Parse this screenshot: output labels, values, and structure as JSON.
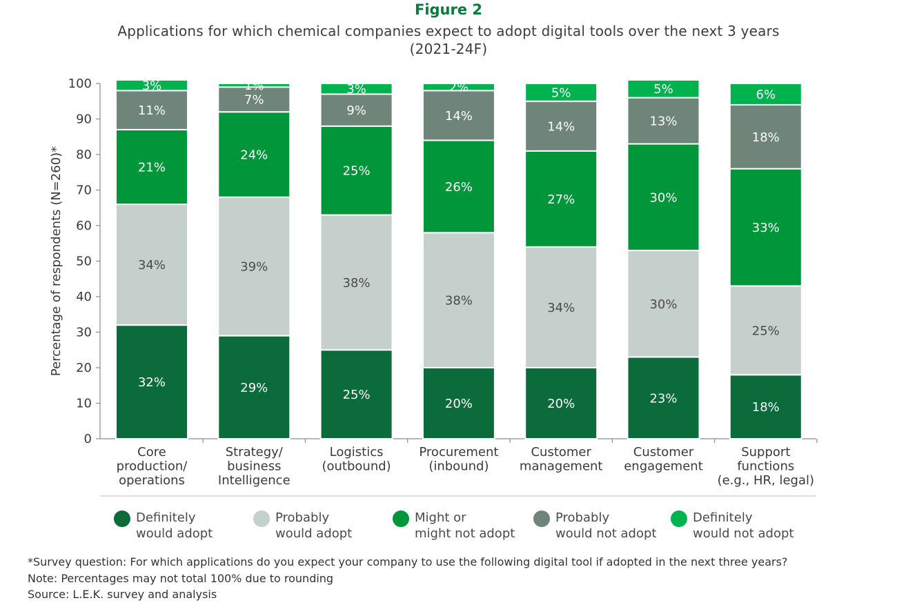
{
  "figure_label": "Figure 2",
  "subtitle_line1": "Applications for which chemical companies expect to adopt digital tools over the next 3 years",
  "subtitle_line2": "(2021-24F)",
  "colors": {
    "definitely_adopt": "#0b6b3a",
    "probably_adopt": "#c5cfcc",
    "might_or_might_not": "#009639",
    "probably_not": "#6f8579",
    "definitely_not": "#00b34f",
    "title_green": "#0a7a3c",
    "axis": "#8a8a8a",
    "tick_text": "#3a3a3a",
    "label_light": "#ffffff",
    "label_dark": "#4a4a4a"
  },
  "legend": [
    {
      "line1": "Definitely",
      "line2": "would adopt",
      "color": "#0b6b3a"
    },
    {
      "line1": "Probably",
      "line2": "would adopt",
      "color": "#c5cfcc"
    },
    {
      "line1": "Might or",
      "line2": "might not adopt",
      "color": "#009639"
    },
    {
      "line1": "Probably",
      "line2": "would not adopt",
      "color": "#6f8579"
    },
    {
      "line1": "Definitely",
      "line2": "would not adopt",
      "color": "#00b34f"
    }
  ],
  "footnotes": {
    "survey": "*Survey question: For which applications do you expect your company to use the following digital tool if adopted in the next three years?",
    "note": "Note: Percentages may not total 100% due to rounding",
    "source": "Source: L.E.K. survey and analysis"
  },
  "chart_data": {
    "type": "bar",
    "stacked": true,
    "title": "Figure 2",
    "subtitle": "Applications for which chemical companies expect to adopt digital tools over the next 3 years (2021-24F)",
    "xlabel": "",
    "ylabel": "Percentage of respondents (N=260)*",
    "ylim": [
      0,
      100
    ],
    "yticks": [
      0,
      10,
      20,
      30,
      40,
      50,
      60,
      70,
      80,
      90,
      100
    ],
    "categories": [
      [
        "Core",
        "production/",
        "operations"
      ],
      [
        "Strategy/",
        "business",
        "Intelligence"
      ],
      [
        "Logistics",
        "(outbound)"
      ],
      [
        "Procurement",
        "(inbound)"
      ],
      [
        "Customer",
        "management"
      ],
      [
        "Customer",
        "engagement"
      ],
      [
        "Support",
        "functions",
        "(e.g., HR, legal)"
      ]
    ],
    "series": [
      {
        "name": "Definitely would adopt",
        "values": [
          32,
          29,
          25,
          20,
          20,
          23,
          18
        ]
      },
      {
        "name": "Probably would adopt",
        "values": [
          34,
          39,
          38,
          38,
          34,
          30,
          25
        ]
      },
      {
        "name": "Might or might not adopt",
        "values": [
          21,
          24,
          25,
          26,
          27,
          30,
          33
        ]
      },
      {
        "name": "Probably would not adopt",
        "values": [
          11,
          7,
          9,
          14,
          14,
          13,
          18
        ]
      },
      {
        "name": "Definitely would not adopt",
        "values": [
          3,
          1,
          3,
          2,
          5,
          5,
          6
        ]
      }
    ],
    "legend_position": "bottom"
  }
}
